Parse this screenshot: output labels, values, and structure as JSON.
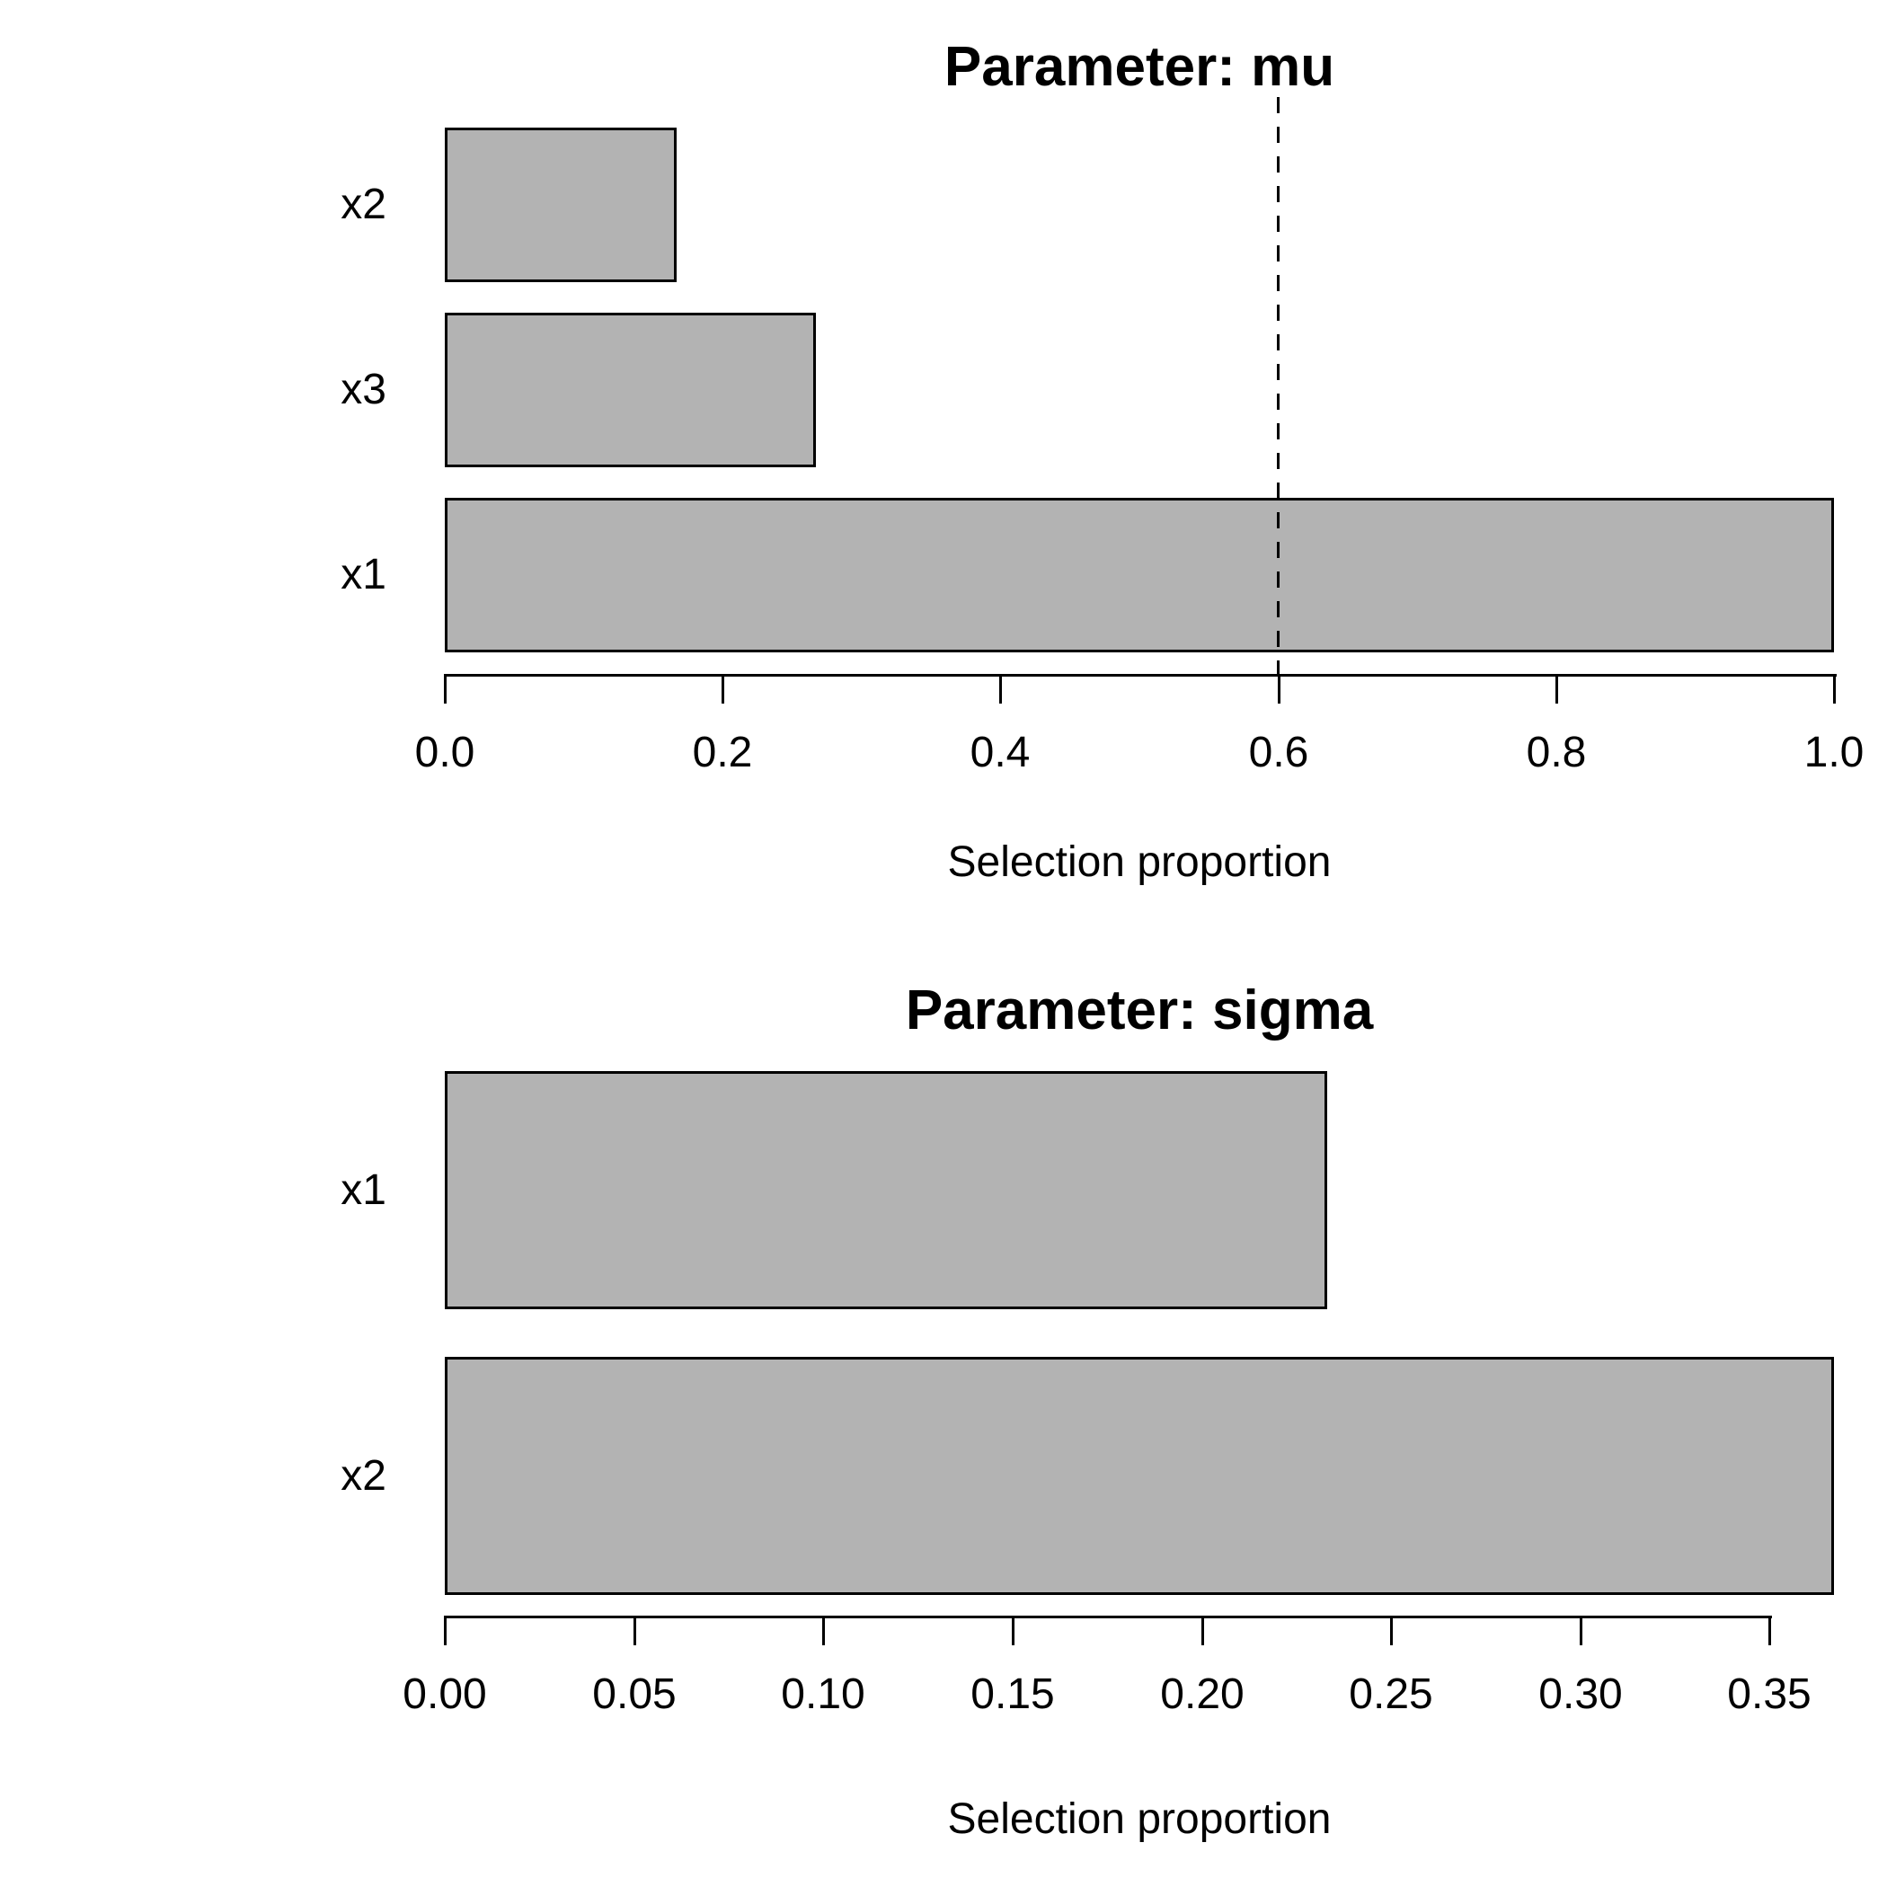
{
  "figure": {
    "background": "#ffffff",
    "bar_fill": "#b3b3b3",
    "bar_border": "#000000",
    "axis_color": "#000000",
    "text_color": "#000000"
  },
  "chart_data": [
    {
      "type": "bar",
      "orientation": "horizontal",
      "title": "Parameter: mu",
      "xlabel": "Selection proportion",
      "categories_top_to_bottom": [
        "x2",
        "x3",
        "x1"
      ],
      "values": [
        0.167,
        0.267,
        1.0
      ],
      "xlim": [
        0,
        1.0
      ],
      "xtick_values": [
        0.0,
        0.2,
        0.4,
        0.6,
        0.8,
        1.0
      ],
      "xtick_labels": [
        "0.0",
        "0.2",
        "0.4",
        "0.6",
        "0.8",
        "1.0"
      ],
      "threshold_line": {
        "value": 0.6,
        "style": "dashed",
        "color": "#000000"
      },
      "grid": false,
      "legend": "none"
    },
    {
      "type": "bar",
      "orientation": "horizontal",
      "title": "Parameter: sigma",
      "xlabel": "Selection proportion",
      "categories_top_to_bottom": [
        "x1",
        "x2"
      ],
      "values": [
        0.233,
        0.367
      ],
      "xlim": [
        0,
        0.367
      ],
      "xtick_values": [
        0.0,
        0.05,
        0.1,
        0.15,
        0.2,
        0.25,
        0.3,
        0.35
      ],
      "xtick_labels": [
        "0.00",
        "0.05",
        "0.10",
        "0.15",
        "0.20",
        "0.25",
        "0.30",
        "0.35"
      ],
      "threshold_line": null,
      "grid": false,
      "legend": "none"
    }
  ]
}
